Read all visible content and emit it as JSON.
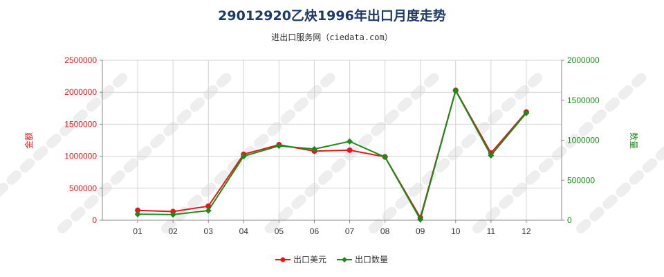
{
  "chart_data": {
    "type": "line",
    "title": "29012920乙炔1996年出口月度走势",
    "subtitle": "进出口服务网（ciedata.com）",
    "categories": [
      "01",
      "02",
      "03",
      "04",
      "05",
      "06",
      "07",
      "08",
      "09",
      "10",
      "11",
      "12"
    ],
    "y_left": {
      "label": "金额",
      "range": [
        0,
        2500000
      ],
      "ticks": [
        "0",
        "500000",
        "1000000",
        "1500000",
        "2000000",
        "2500000"
      ],
      "tick_values": [
        0,
        500000,
        1000000,
        1500000,
        2000000,
        2500000
      ],
      "color": "#e0191a"
    },
    "y_right": {
      "label": "数量",
      "range": [
        0,
        2000000
      ],
      "ticks": [
        "0",
        "500000",
        "1000000",
        "1500000",
        "2000000"
      ],
      "tick_values": [
        0,
        500000,
        1000000,
        1500000,
        2000000
      ],
      "color": "#1b8a1b"
    },
    "series": [
      {
        "name": "出口美元",
        "axis": "left",
        "color": "#e0191a",
        "values": [
          155000,
          135000,
          220000,
          1030000,
          1180000,
          1080000,
          1095000,
          990000,
          40000,
          2030000,
          1050000,
          1690000
        ]
      },
      {
        "name": "出口数量",
        "axis": "right",
        "color": "#1b8a1b",
        "values": [
          75000,
          70000,
          120000,
          800000,
          930000,
          890000,
          985000,
          790000,
          10000,
          1620000,
          810000,
          1340000
        ]
      }
    ],
    "grid": true,
    "legend_position": "bottom-center"
  }
}
